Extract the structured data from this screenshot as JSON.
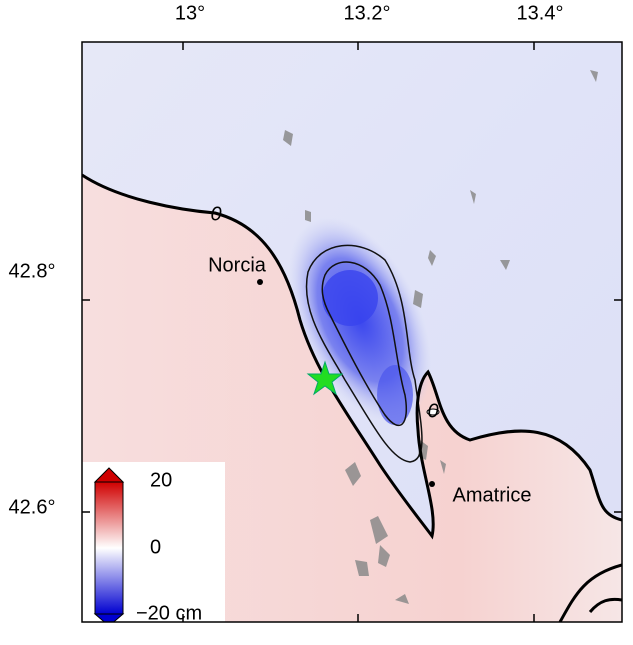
{
  "map": {
    "x_ticks": [
      "13°",
      "13.2°",
      "13.4°"
    ],
    "y_ticks": [
      "42.8°",
      "42.6°"
    ],
    "places": [
      "Norcia",
      "Amatrice"
    ],
    "contour_labels": [
      "0",
      "0"
    ],
    "colorbar": {
      "labels": [
        "20",
        "0",
        "−20 cm"
      ]
    }
  }
}
